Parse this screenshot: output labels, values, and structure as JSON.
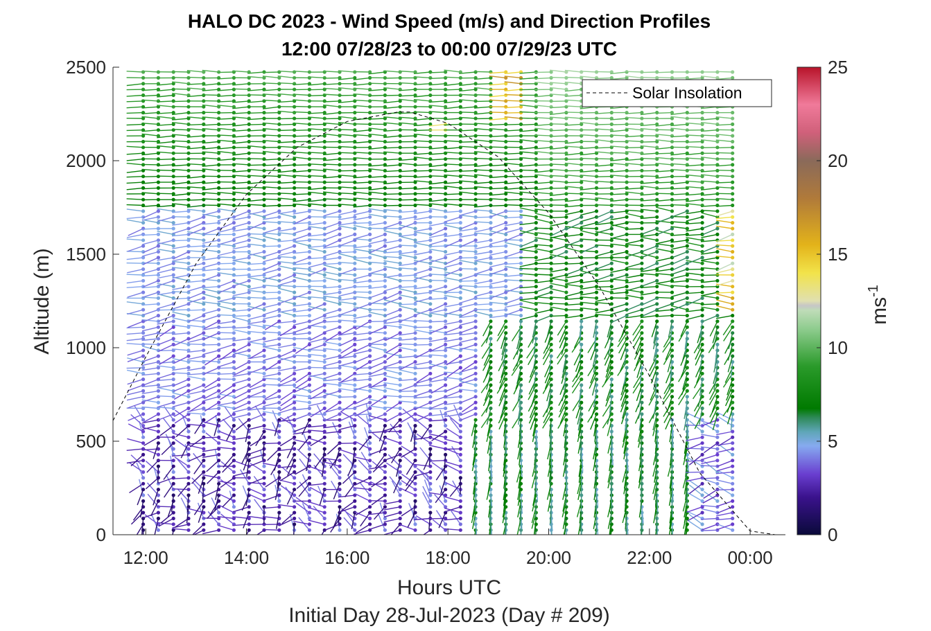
{
  "chart_data": {
    "type": "wind-barb profile (time-height vector plot)",
    "title_line1": "HALO DC 2023 - Wind Speed (m/s) and Direction Profiles",
    "title_line2": "12:00 07/28/23 to 00:00 07/29/23  UTC",
    "xlabel": "Hours UTC",
    "xlabel2": "Initial Day 28-Jul-2023 (Day # 209)",
    "ylabel": "Altitude (m)",
    "colorbar_label": "ms",
    "colorbar_label_exp": "-1",
    "x_ticks": [
      "12:00",
      "14:00",
      "16:00",
      "18:00",
      "20:00",
      "22:00",
      "00:00"
    ],
    "x_tick_hours": [
      12,
      14,
      16,
      18,
      20,
      22,
      24
    ],
    "xlim_hours": [
      11.35,
      24.7
    ],
    "y_ticks": [
      "0",
      "500",
      "1000",
      "1500",
      "2000",
      "2500"
    ],
    "ylim": [
      0,
      2500
    ],
    "colorbar_ticks": [
      "0",
      "5",
      "10",
      "15",
      "20",
      "25"
    ],
    "colorbar_range": [
      0,
      25
    ],
    "legend": {
      "label": "Solar Insolation",
      "placement": "top-right"
    },
    "solar_insolation": {
      "description_hours": [
        11.35,
        12,
        13,
        14,
        15,
        16,
        17,
        17.25,
        18,
        19,
        20,
        21,
        22,
        23,
        24,
        24.5
      ],
      "altitude_equivalent_m": [
        610,
        950,
        1450,
        1820,
        2070,
        2210,
        2260,
        2260,
        2200,
        2020,
        1720,
        1330,
        850,
        330,
        20,
        0
      ]
    },
    "wind_profile": {
      "time_hours_start": 11.95,
      "time_hours_end": 23.8,
      "time_step_hours": 0.3,
      "altitude_start_m": 25,
      "altitude_end_m": 2500,
      "altitude_step_m": 31,
      "regime_summary": [
        {
          "layer": "0-600 m",
          "period": "12:00-19:00",
          "speed_ms": [
            1,
            4
          ],
          "direction_deg": [
            160,
            340
          ]
        },
        {
          "layer": "0-800 m",
          "period": "19:00-23:00",
          "speed_ms": [
            5,
            8
          ],
          "direction_deg": [
            180,
            200
          ]
        },
        {
          "layer": "600-1600 m",
          "period": "12:00-20:00",
          "speed_ms": [
            3,
            5
          ],
          "direction_deg": [
            250,
            280
          ]
        },
        {
          "layer": "1600-2500 m",
          "period": "12:00-24:00",
          "speed_ms": [
            6,
            11
          ],
          "direction_deg": [
            265,
            285
          ]
        },
        {
          "layer": "2200-2500 m",
          "period": "19:00-19:30",
          "speed_ms": [
            13,
            17
          ],
          "direction_deg": [
            270,
            290
          ]
        },
        {
          "layer": "1200-1800 m",
          "period": "23:45",
          "speed_ms": [
            12,
            16
          ],
          "direction_deg": [
            250,
            270
          ]
        }
      ]
    }
  }
}
